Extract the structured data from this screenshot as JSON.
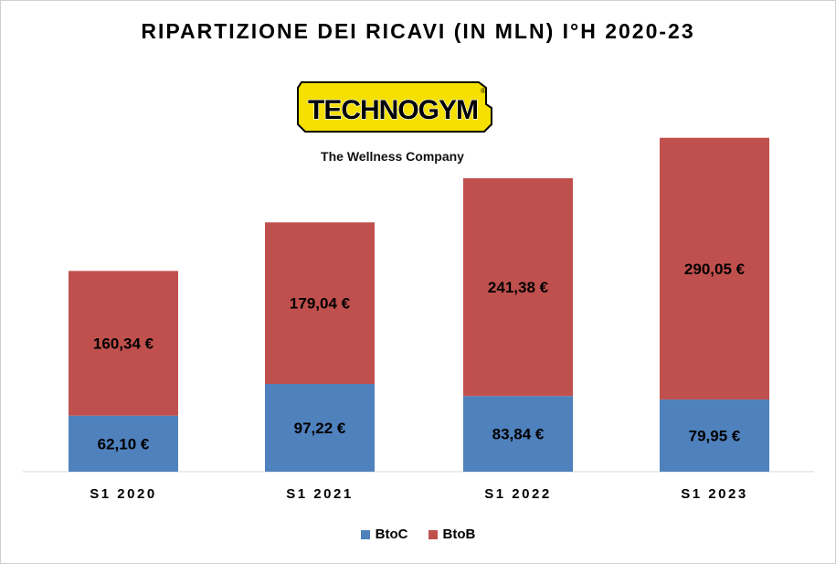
{
  "title": "RIPARTIZIONE  DEI RICAVI (IN MLN) I°H 2020-23",
  "logo": {
    "brand": "TECHNOGYM",
    "registered_mark": "®",
    "tagline": "The Wellness Company",
    "colors": {
      "background": "#F5E000",
      "outline": "#000000"
    }
  },
  "chart_data": {
    "type": "bar",
    "stacked": true,
    "categories": [
      "S1 2020",
      "S1 2021",
      "S1 2022",
      "S1 2023"
    ],
    "series": [
      {
        "name": "BtoC",
        "color": "#4F81BD",
        "values": [
          62.1,
          97.22,
          83.84,
          79.95
        ],
        "labels": [
          "62,10 €",
          "97,22 €",
          "83,84 €",
          "79,95 €"
        ]
      },
      {
        "name": "BtoB",
        "color": "#C0504D",
        "values": [
          160.34,
          179.04,
          241.38,
          290.05
        ],
        "labels": [
          "160,34 €",
          "179,04 €",
          "241,38 €",
          "290,05 €"
        ]
      }
    ],
    "ylim": [
      0,
      390
    ],
    "grid": false,
    "legend": "bottom-center",
    "xlabel": "",
    "ylabel": ""
  }
}
